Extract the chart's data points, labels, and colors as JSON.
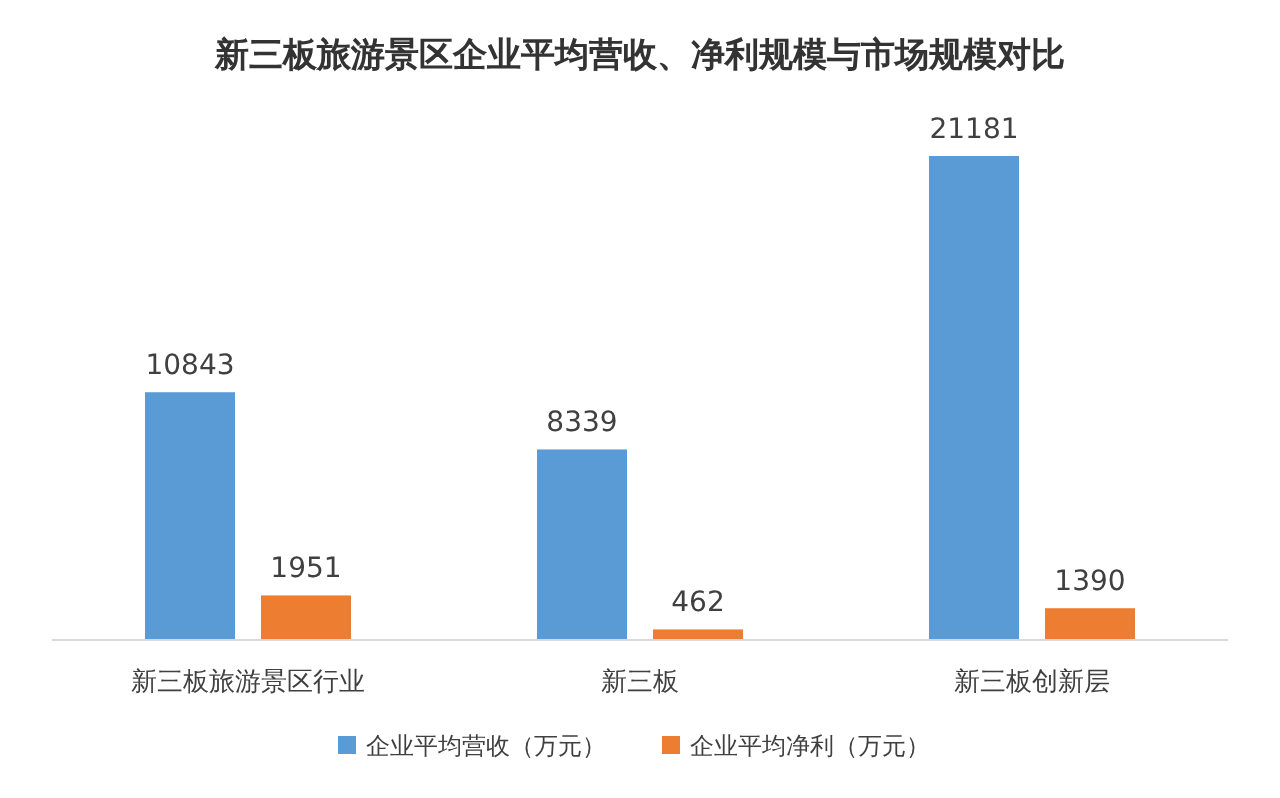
{
  "chart_data": {
    "type": "bar",
    "title": "新三板旅游景区企业平均营收、净利规模与市场规模对比",
    "categories": [
      "新三板旅游景区行业",
      "新三板",
      "新三板创新层"
    ],
    "series": [
      {
        "name": "企业平均营收（万元）",
        "color": "#5b9bd5",
        "values": [
          10843,
          8339,
          21181
        ]
      },
      {
        "name": "企业平均净利（万元）",
        "color": "#ed7d31",
        "values": [
          1951,
          462,
          1390
        ]
      }
    ],
    "data_labels": true,
    "legend": "bottom"
  }
}
